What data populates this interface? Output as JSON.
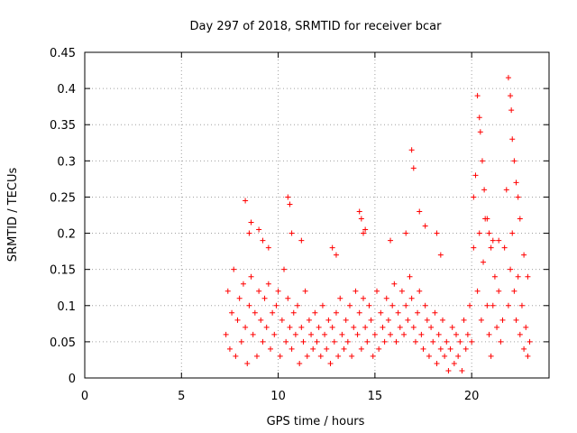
{
  "chart_data": {
    "type": "scatter",
    "title": "Day 297 of 2018, SRMTID for receiver bcar",
    "xlabel": "GPS time / hours",
    "ylabel": "SRMTID / TECUs",
    "xlim": [
      0,
      24
    ],
    "ylim": [
      0,
      0.45
    ],
    "xticks": [
      0,
      5,
      10,
      15,
      20
    ],
    "xtick_labels": [
      "0",
      "5",
      "10",
      "15",
      "20"
    ],
    "yticks": [
      0,
      0.05,
      0.1,
      0.15,
      0.2,
      0.25,
      0.3,
      0.35,
      0.4,
      0.45
    ],
    "ytick_labels": [
      "0",
      "0.05",
      "0.1",
      "0.15",
      "0.2",
      "0.25",
      "0.3",
      "0.35",
      "0.4",
      "0.45"
    ],
    "grid": true,
    "marker": "+",
    "color": "#ff0000",
    "series": [
      {
        "name": "SRMTID",
        "x": [
          7.3,
          7.4,
          7.5,
          7.6,
          7.7,
          7.8,
          7.9,
          8.0,
          8.1,
          8.2,
          8.3,
          8.4,
          8.5,
          8.6,
          8.7,
          8.8,
          8.9,
          9.0,
          9.1,
          9.2,
          9.3,
          9.4,
          9.5,
          9.6,
          9.7,
          9.8,
          9.9,
          10.0,
          10.1,
          10.2,
          10.3,
          10.4,
          10.5,
          10.6,
          10.7,
          10.8,
          10.9,
          11.0,
          11.1,
          11.2,
          11.3,
          11.4,
          11.5,
          11.6,
          11.7,
          11.8,
          11.9,
          12.0,
          12.1,
          12.2,
          12.3,
          12.4,
          12.5,
          12.6,
          12.7,
          12.8,
          12.9,
          13.0,
          13.1,
          13.2,
          13.3,
          13.4,
          13.5,
          13.6,
          13.7,
          13.8,
          13.9,
          14.0,
          14.1,
          14.2,
          14.3,
          14.4,
          14.5,
          14.6,
          14.7,
          14.8,
          14.9,
          15.0,
          15.1,
          15.2,
          15.3,
          15.4,
          15.5,
          15.6,
          15.7,
          15.8,
          15.9,
          16.0,
          16.1,
          16.2,
          16.3,
          16.4,
          16.5,
          16.6,
          16.7,
          16.8,
          16.9,
          17.0,
          17.1,
          17.2,
          17.3,
          17.4,
          17.5,
          17.6,
          17.7,
          17.8,
          17.9,
          18.0,
          18.1,
          18.2,
          18.3,
          18.4,
          18.5,
          18.6,
          18.7,
          18.8,
          18.9,
          19.0,
          19.1,
          19.2,
          19.3,
          19.4,
          19.5,
          19.6,
          19.7,
          19.8,
          19.9,
          20.0,
          20.1,
          20.2,
          20.3,
          20.4,
          20.5,
          20.6,
          20.7,
          20.8,
          20.9,
          21.0,
          21.1,
          21.2,
          21.3,
          21.4,
          21.5,
          21.6,
          21.7,
          21.8,
          21.9,
          22.0,
          22.1,
          22.2,
          22.3,
          22.4,
          22.5,
          22.6,
          22.7,
          22.8,
          22.9,
          23.0,
          8.3,
          8.5,
          8.6,
          9.0,
          9.2,
          9.5,
          10.5,
          10.6,
          10.7,
          11.2,
          12.8,
          13.0,
          14.2,
          14.3,
          14.4,
          14.5,
          15.8,
          16.6,
          16.9,
          17.0,
          17.3,
          17.6,
          18.2,
          18.4,
          20.1,
          20.3,
          20.4,
          20.45,
          20.55,
          20.65,
          20.8,
          20.9,
          21.0,
          21.1,
          21.4,
          21.9,
          22.0,
          22.05,
          22.1,
          22.2,
          22.3,
          22.4,
          22.5,
          22.7,
          22.9
        ],
        "y": [
          0.06,
          0.12,
          0.04,
          0.09,
          0.15,
          0.03,
          0.08,
          0.11,
          0.05,
          0.13,
          0.07,
          0.02,
          0.1,
          0.14,
          0.06,
          0.09,
          0.03,
          0.12,
          0.08,
          0.05,
          0.11,
          0.07,
          0.13,
          0.04,
          0.09,
          0.06,
          0.1,
          0.12,
          0.03,
          0.08,
          0.15,
          0.05,
          0.11,
          0.07,
          0.04,
          0.09,
          0.06,
          0.1,
          0.02,
          0.07,
          0.05,
          0.12,
          0.03,
          0.08,
          0.06,
          0.04,
          0.09,
          0.05,
          0.07,
          0.03,
          0.1,
          0.06,
          0.04,
          0.08,
          0.02,
          0.07,
          0.05,
          0.09,
          0.03,
          0.11,
          0.06,
          0.04,
          0.08,
          0.05,
          0.1,
          0.03,
          0.07,
          0.12,
          0.06,
          0.09,
          0.04,
          0.11,
          0.07,
          0.05,
          0.1,
          0.08,
          0.03,
          0.06,
          0.12,
          0.04,
          0.09,
          0.07,
          0.05,
          0.11,
          0.08,
          0.06,
          0.1,
          0.13,
          0.05,
          0.09,
          0.07,
          0.12,
          0.06,
          0.1,
          0.08,
          0.14,
          0.11,
          0.07,
          0.05,
          0.09,
          0.12,
          0.06,
          0.04,
          0.1,
          0.08,
          0.03,
          0.07,
          0.05,
          0.09,
          0.02,
          0.06,
          0.04,
          0.08,
          0.03,
          0.05,
          0.01,
          0.04,
          0.07,
          0.02,
          0.06,
          0.03,
          0.05,
          0.01,
          0.08,
          0.04,
          0.06,
          0.1,
          0.05,
          0.18,
          0.28,
          0.12,
          0.2,
          0.08,
          0.16,
          0.22,
          0.1,
          0.06,
          0.03,
          0.1,
          0.14,
          0.07,
          0.12,
          0.05,
          0.08,
          0.18,
          0.26,
          0.1,
          0.15,
          0.2,
          0.12,
          0.08,
          0.14,
          0.06,
          0.1,
          0.04,
          0.07,
          0.03,
          0.05,
          0.245,
          0.2,
          0.215,
          0.205,
          0.19,
          0.18,
          0.25,
          0.24,
          0.2,
          0.19,
          0.18,
          0.17,
          0.23,
          0.22,
          0.2,
          0.205,
          0.19,
          0.2,
          0.315,
          0.29,
          0.23,
          0.21,
          0.2,
          0.17,
          0.25,
          0.39,
          0.36,
          0.34,
          0.3,
          0.26,
          0.22,
          0.2,
          0.18,
          0.19,
          0.19,
          0.415,
          0.39,
          0.37,
          0.33,
          0.3,
          0.27,
          0.25,
          0.22,
          0.17,
          0.14
        ]
      }
    ]
  }
}
